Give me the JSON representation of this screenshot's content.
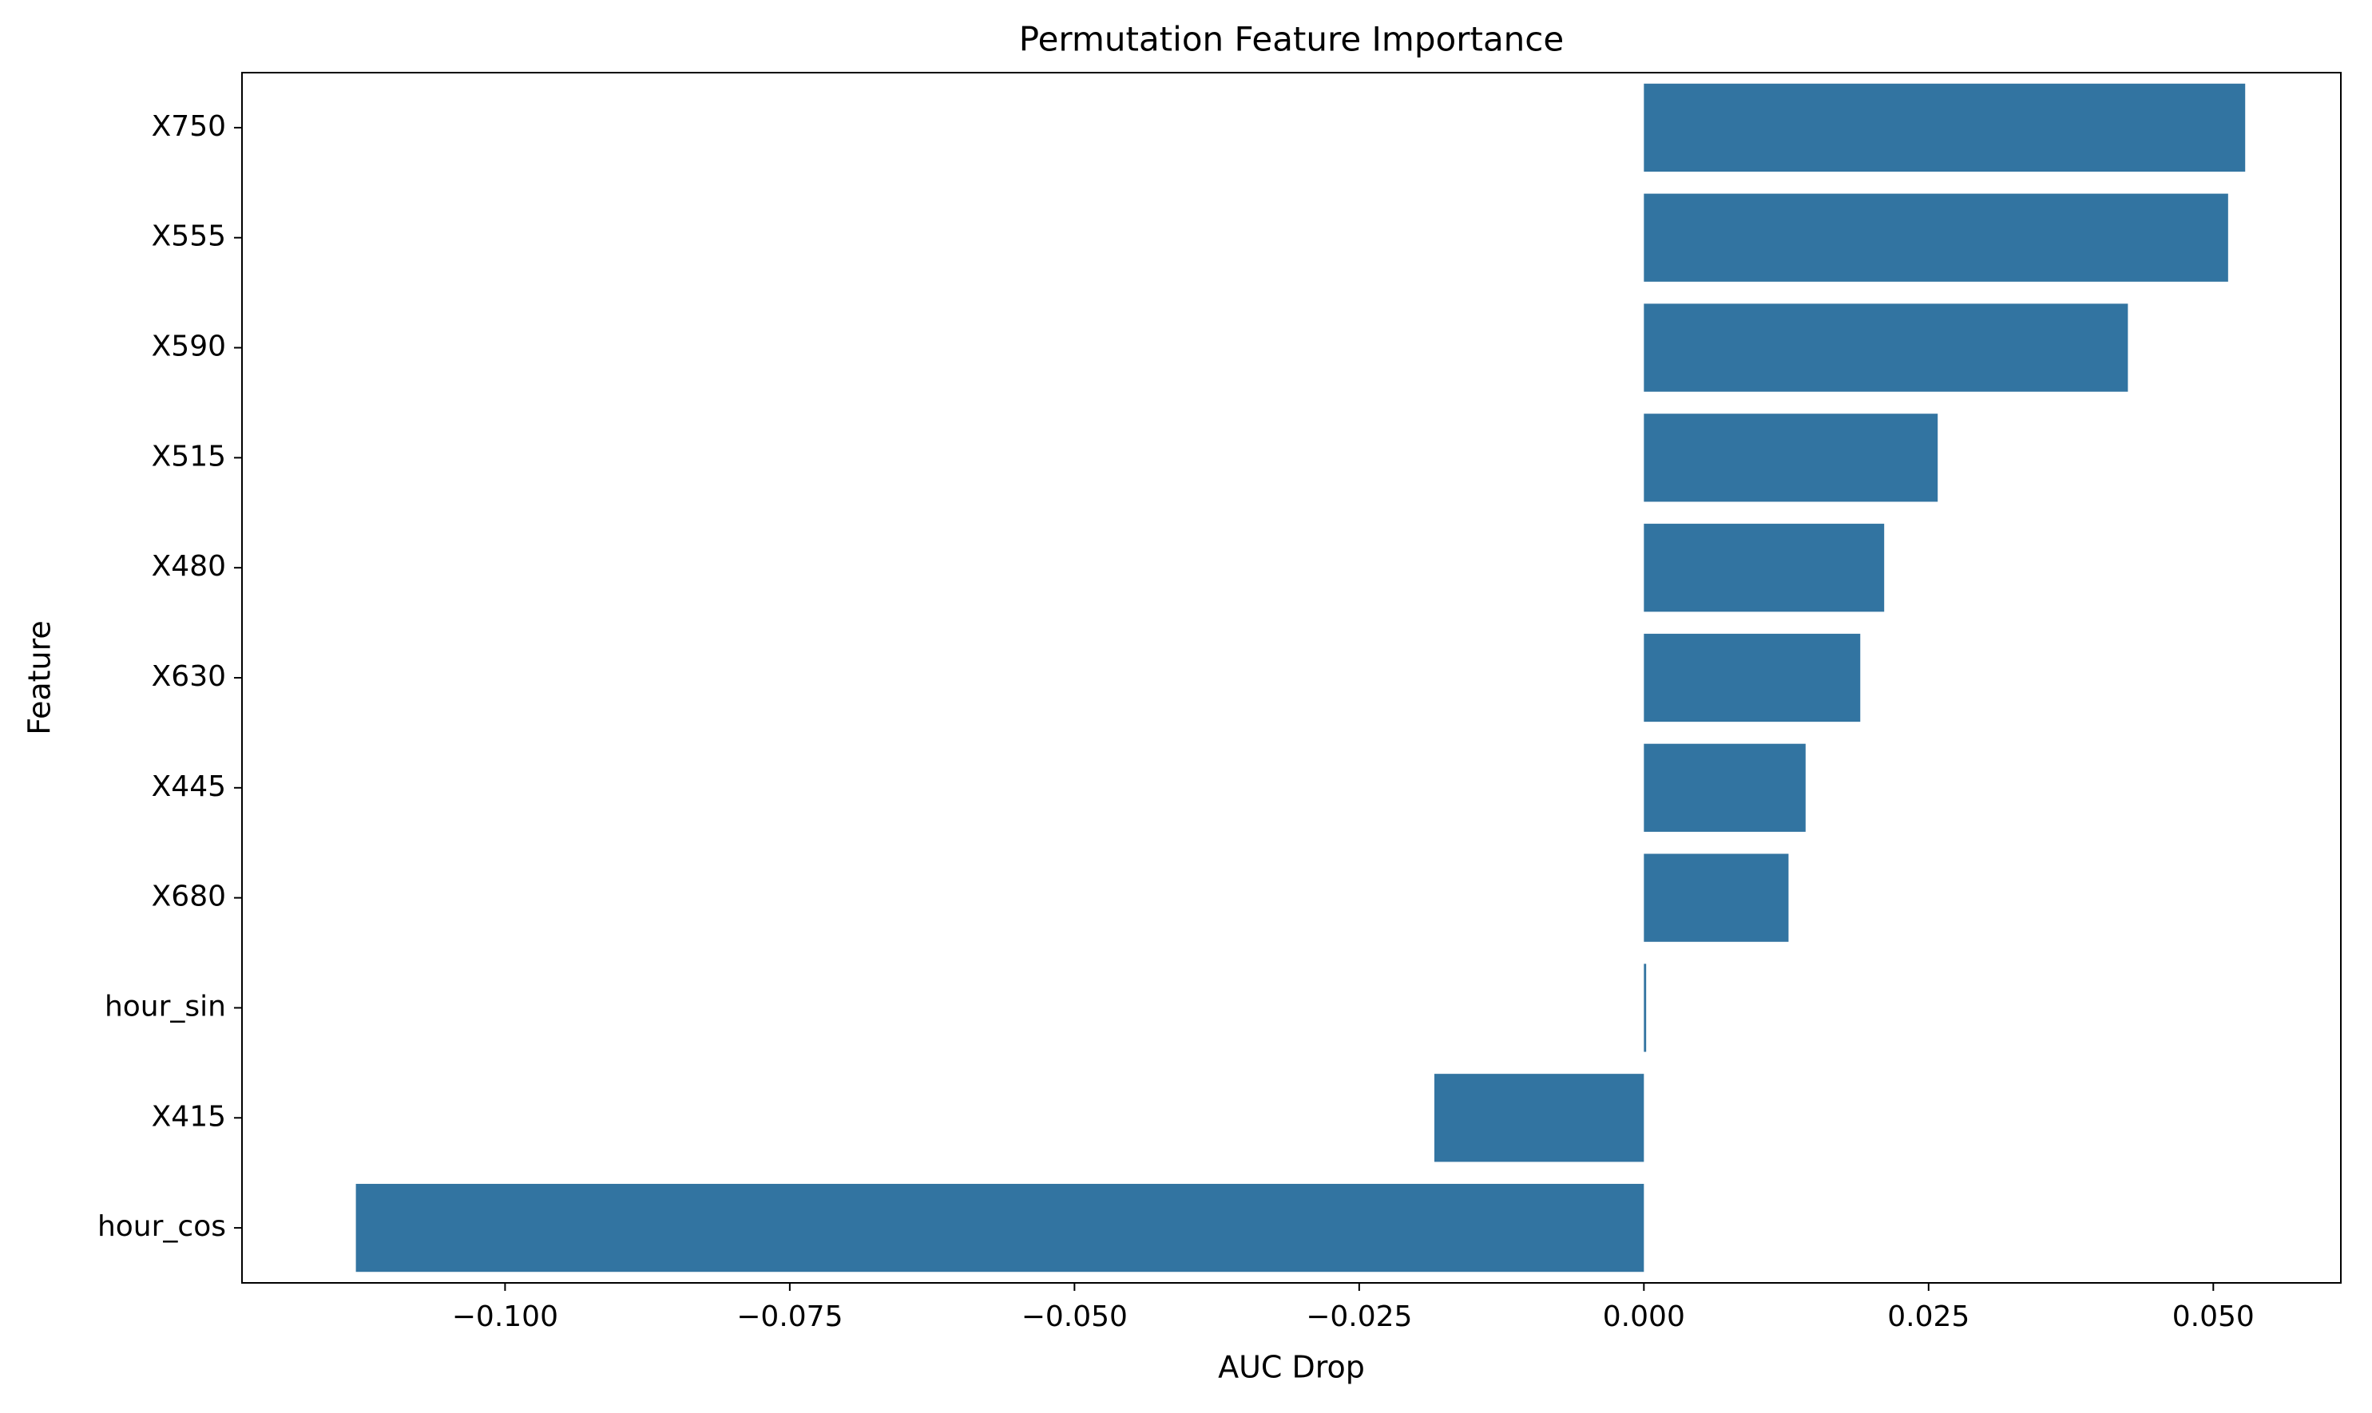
{
  "chart_data": {
    "type": "bar",
    "orientation": "horizontal",
    "title": "Permutation Feature Importance",
    "xlabel": "AUC Drop",
    "ylabel": "Feature",
    "categories": [
      "X750",
      "X555",
      "X590",
      "X515",
      "X480",
      "X630",
      "X445",
      "X680",
      "hour_sin",
      "X415",
      "hour_cos"
    ],
    "values": [
      0.0528,
      0.0513,
      0.0425,
      0.0258,
      0.0211,
      0.019,
      0.0142,
      0.0127,
      0.0002,
      -0.0184,
      -0.1131
    ],
    "xlim": [
      -0.1231,
      0.0612
    ],
    "xticks": [
      -0.1,
      -0.075,
      -0.05,
      -0.025,
      0.0,
      0.025,
      0.05
    ],
    "xtick_labels": [
      "−0.100",
      "−0.075",
      "−0.050",
      "−0.025",
      "0.000",
      "0.025",
      "0.050"
    ],
    "grid": false,
    "legend": "none",
    "bar_color": "#3274a1"
  }
}
